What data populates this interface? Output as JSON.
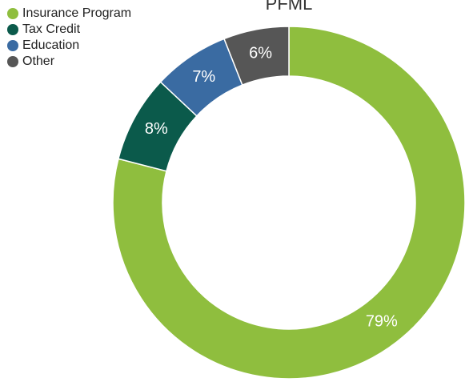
{
  "chart_data": {
    "type": "donut",
    "title": "PFML",
    "categories": [
      "Insurance Program",
      "Tax Credit",
      "Education",
      "Other"
    ],
    "values": [
      79,
      8,
      7,
      6
    ],
    "value_labels": [
      "79%",
      "8%",
      "7%",
      "6%"
    ],
    "colors": [
      "#8fbe3e",
      "#0b5a4b",
      "#3a6ba2",
      "#565656"
    ],
    "legend": "top-left"
  }
}
